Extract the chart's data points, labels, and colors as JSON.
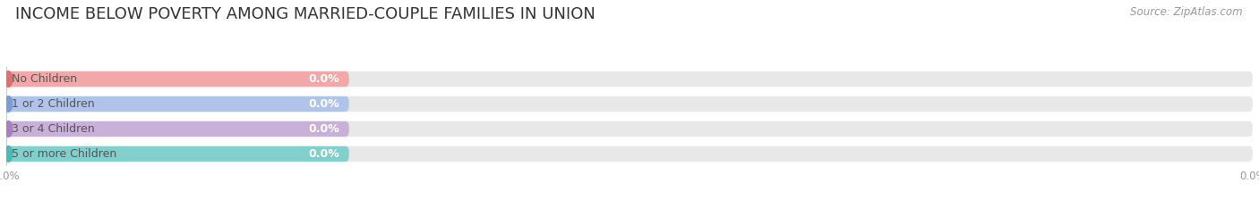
{
  "title": "INCOME BELOW POVERTY AMONG MARRIED-COUPLE FAMILIES IN UNION",
  "source": "Source: ZipAtlas.com",
  "categories": [
    "No Children",
    "1 or 2 Children",
    "3 or 4 Children",
    "5 or more Children"
  ],
  "values": [
    0.0,
    0.0,
    0.0,
    0.0
  ],
  "bar_colors": [
    "#f2a8a8",
    "#afc4e8",
    "#c9b0d8",
    "#82d0cc"
  ],
  "dot_colors": [
    "#e07070",
    "#7a9fd0",
    "#a87ec0",
    "#4db8b4"
  ],
  "background_color": "#ffffff",
  "bar_bg_color": "#e8e8e8",
  "title_fontsize": 13,
  "label_fontsize": 9,
  "value_fontsize": 9,
  "source_fontsize": 8.5,
  "tick_fontsize": 8.5,
  "tick_color": "#999999",
  "text_color": "#555555",
  "grid_color": "#cccccc"
}
